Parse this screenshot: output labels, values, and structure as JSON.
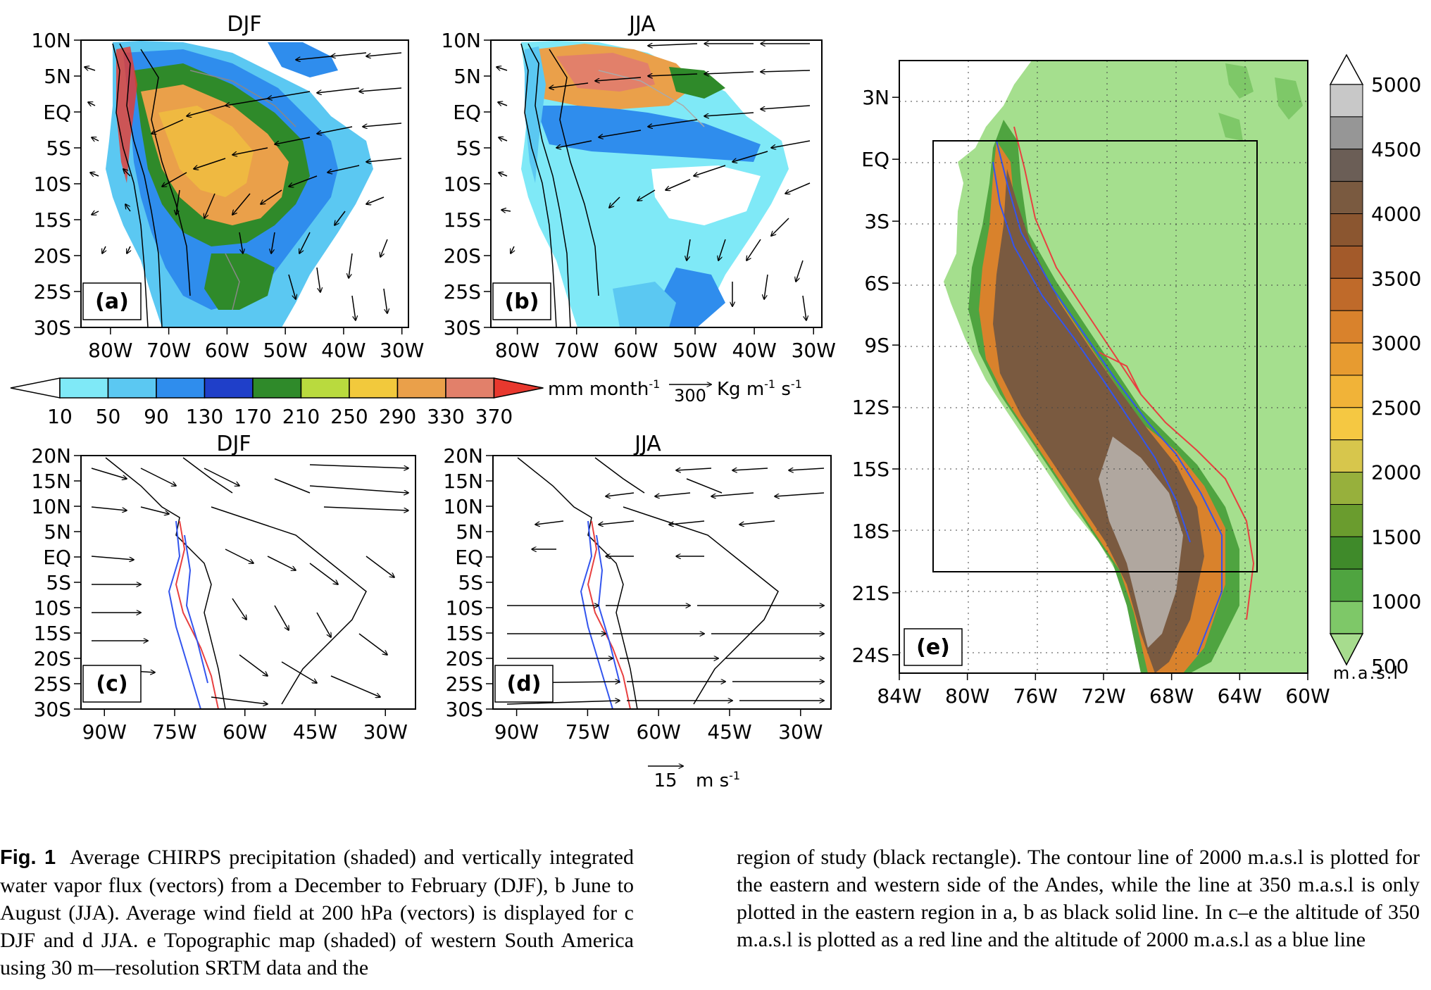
{
  "panels": {
    "a": {
      "title": "DJF",
      "label": "(a)",
      "yticks": [
        "10N",
        "5N",
        "EQ",
        "5S",
        "10S",
        "15S",
        "20S",
        "25S",
        "30S"
      ],
      "xticks": [
        "80W",
        "70W",
        "60W",
        "50W",
        "40W",
        "30W"
      ]
    },
    "b": {
      "title": "JJA",
      "label": "(b)",
      "yticks": [
        "10N",
        "5N",
        "EQ",
        "5S",
        "10S",
        "15S",
        "20S",
        "25S",
        "30S"
      ],
      "xticks": [
        "80W",
        "70W",
        "60W",
        "50W",
        "40W",
        "30W"
      ]
    },
    "c": {
      "title": "DJF",
      "label": "(c)",
      "yticks": [
        "20N",
        "15N",
        "10N",
        "5N",
        "EQ",
        "5S",
        "10S",
        "15S",
        "20S",
        "25S",
        "30S"
      ],
      "xticks": [
        "90W",
        "75W",
        "60W",
        "45W",
        "30W"
      ]
    },
    "d": {
      "title": "JJA",
      "label": "(d)",
      "yticks": [
        "20N",
        "15N",
        "10N",
        "5N",
        "EQ",
        "5S",
        "10S",
        "15S",
        "20S",
        "25S",
        "30S"
      ],
      "xticks": [
        "90W",
        "75W",
        "60W",
        "45W",
        "30W"
      ]
    },
    "e": {
      "label": "(e)",
      "yticks": [
        "3N",
        "EQ",
        "3S",
        "6S",
        "9S",
        "12S",
        "15S",
        "18S",
        "21S",
        "24S"
      ],
      "xticks": [
        "84W",
        "80W",
        "76W",
        "72W",
        "68W",
        "64W",
        "60W"
      ]
    }
  },
  "precip_colorbar": {
    "ticks": [
      "10",
      "50",
      "90",
      "130",
      "170",
      "210",
      "250",
      "290",
      "330",
      "370"
    ],
    "units": "mm month",
    "units_sup": "-1",
    "vector_ref_value": "300",
    "vector_ref_units": "Kg m",
    "vector_ref_sup1": "-1",
    "vector_ref_s": " s",
    "vector_ref_sup2": "-1",
    "colors": [
      "#ffffff",
      "#7fe9f7",
      "#5bc8f2",
      "#2f8ded",
      "#1f3fc9",
      "#2f8a2a",
      "#b9da3e",
      "#f2c93c",
      "#eaa04a",
      "#e2806a",
      "#e8382e"
    ]
  },
  "wind_reference": {
    "value": "15",
    "units": "m s",
    "units_sup": "-1"
  },
  "elevation_colorbar": {
    "ticks": [
      "5000",
      "4500",
      "4000",
      "3500",
      "3000",
      "2500",
      "2000",
      "1500",
      "1000",
      "500"
    ],
    "units": "m.a.s.l",
    "colors": [
      "#ffffff",
      "#c8c8c8",
      "#969696",
      "#6b5e56",
      "#7a5a40",
      "#8b5630",
      "#a35a2a",
      "#bf6a2a",
      "#d9822c",
      "#e79b30",
      "#f1b338",
      "#f5c842",
      "#d7c64c",
      "#97b03c",
      "#6a9c2e",
      "#3f8a2a",
      "#4fa440",
      "#7ec868",
      "#a7dc8e"
    ]
  },
  "caption": {
    "fig_label": "Fig. 1",
    "left_text": "Average CHIRPS precipitation (shaded) and vertically integrated water vapor flux (vectors) from a December to February (DJF), b June to August (JJA). Average wind field at 200 hPa (vectors) is displayed for c DJF and d JJA. e Topographic map (shaded) of western South America using 30 m—resolution SRTM data and the",
    "right_text": "region of study (black rectangle). The contour line of 2000 m.a.s.l is plotted for the eastern and western side of the Andes, while the line at 350 m.a.s.l is only plotted in the eastern region in a, b as black solid line. In c–e the altitude of 350 m.a.s.l is plotted as a red line and the altitude of 2000 m.a.s.l as a blue line"
  },
  "colors": {
    "ocean": "#ffffff",
    "land_e": "#a5df8e",
    "contour_350": "#e84040",
    "contour_2000": "#3355ee"
  }
}
